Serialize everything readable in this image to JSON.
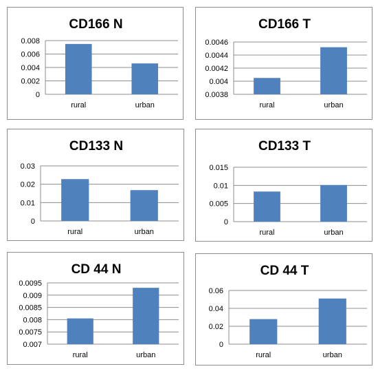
{
  "chart_data": [
    {
      "type": "bar",
      "title": "CD166 N",
      "categories": [
        "rural",
        "urban"
      ],
      "values": [
        0.0075,
        0.0046
      ],
      "ylim": [
        0,
        0.008
      ],
      "yticks": [
        "0",
        "0.002",
        "0.004",
        "0.006",
        "0.008"
      ],
      "grid": true
    },
    {
      "type": "bar",
      "title": "CD166 T",
      "categories": [
        "rural",
        "urban"
      ],
      "values": [
        0.00405,
        0.00452
      ],
      "ylim": [
        0.0038,
        0.0046
      ],
      "yticks": [
        "0.0038",
        "0.004",
        "0.0042",
        "0.0044",
        "0.0046"
      ],
      "grid": true
    },
    {
      "type": "bar",
      "title": "CD133 N",
      "categories": [
        "rural",
        "urban"
      ],
      "values": [
        0.0228,
        0.0168
      ],
      "ylim": [
        0,
        0.03
      ],
      "yticks": [
        "0",
        "0.01",
        "0.02",
        "0.03"
      ],
      "grid": true
    },
    {
      "type": "bar",
      "title": "CD133 T",
      "categories": [
        "rural",
        "urban"
      ],
      "values": [
        0.0083,
        0.0101
      ],
      "ylim": [
        0,
        0.015
      ],
      "yticks": [
        "0",
        "0.005",
        "0.01",
        "0.015"
      ],
      "grid": true
    },
    {
      "type": "bar",
      "title": "CD 44 N",
      "categories": [
        "rural",
        "urban"
      ],
      "values": [
        0.00805,
        0.0093
      ],
      "ylim": [
        0.007,
        0.0095
      ],
      "yticks": [
        "0.007",
        "0.0075",
        "0.008",
        "0.0085",
        "0.009",
        "0.0095"
      ],
      "grid": true
    },
    {
      "type": "bar",
      "title": "CD 44 T",
      "categories": [
        "rural",
        "urban"
      ],
      "values": [
        0.028,
        0.051
      ],
      "ylim": [
        0,
        0.06
      ],
      "yticks": [
        "0",
        "0.02",
        "0.04",
        "0.06"
      ],
      "grid": true
    }
  ]
}
